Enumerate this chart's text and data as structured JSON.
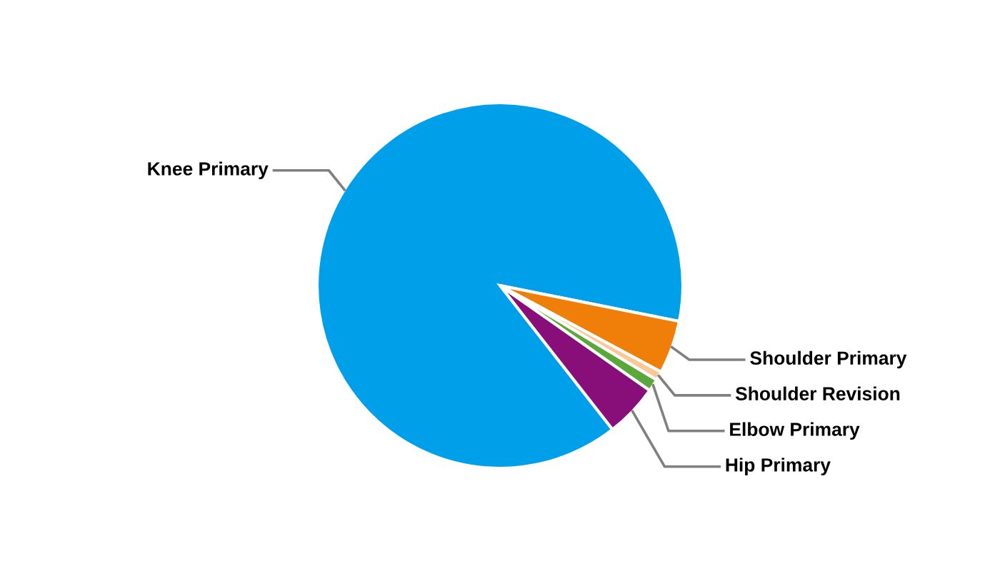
{
  "chart_data": {
    "type": "pie",
    "categories": [
      "Knee Primary",
      "Shoulder Primary",
      "Shoulder Revision",
      "Elbow Primary",
      "Hip Primary"
    ],
    "values": [
      88.7,
      4.7,
      0.8,
      1.1,
      4.7
    ],
    "colors": [
      "#009fea",
      "#f07f09",
      "#fac898",
      "#5aa83a",
      "#880e7a"
    ]
  }
}
